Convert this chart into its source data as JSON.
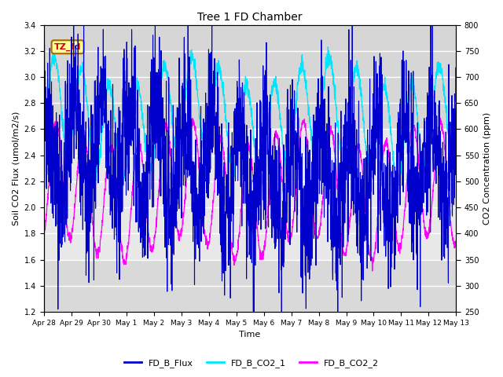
{
  "title": "Tree 1 FD Chamber",
  "xlabel": "Time",
  "ylabel_left": "Soil CO2 Flux (umol/m2/s)",
  "ylabel_right": "CO2 Concentration (ppm)",
  "ylim_left": [
    1.2,
    3.4
  ],
  "ylim_right": [
    250,
    800
  ],
  "yticks_left": [
    1.2,
    1.4,
    1.6,
    1.8,
    2.0,
    2.2,
    2.4,
    2.6,
    2.8,
    3.0,
    3.2,
    3.4
  ],
  "yticks_right": [
    250,
    300,
    350,
    400,
    450,
    500,
    550,
    600,
    650,
    700,
    750,
    800
  ],
  "xtick_labels": [
    "Apr 28",
    "Apr 29",
    "Apr 30",
    "May 1",
    "May 2",
    "May 3",
    "May 4",
    "May 5",
    "May 6",
    "May 7",
    "May 8",
    "May 9",
    "May 10",
    "May 11",
    "May 12",
    "May 13"
  ],
  "color_flux": "#0000cc",
  "color_co2_1": "#00e5ff",
  "color_co2_2": "#ff00ff",
  "label_flux": "FD_B_Flux",
  "label_co2_1": "FD_B_CO2_1",
  "label_co2_2": "FD_B_CO2_2",
  "annotation_text": "TZ_fd",
  "annotation_color": "#cc0000",
  "annotation_bg": "#ffff99",
  "bg_color": "#e8e8e8",
  "band_light_color": "#d0d0d0",
  "n_days": 15,
  "pts_per_day": 144,
  "seed": 42
}
